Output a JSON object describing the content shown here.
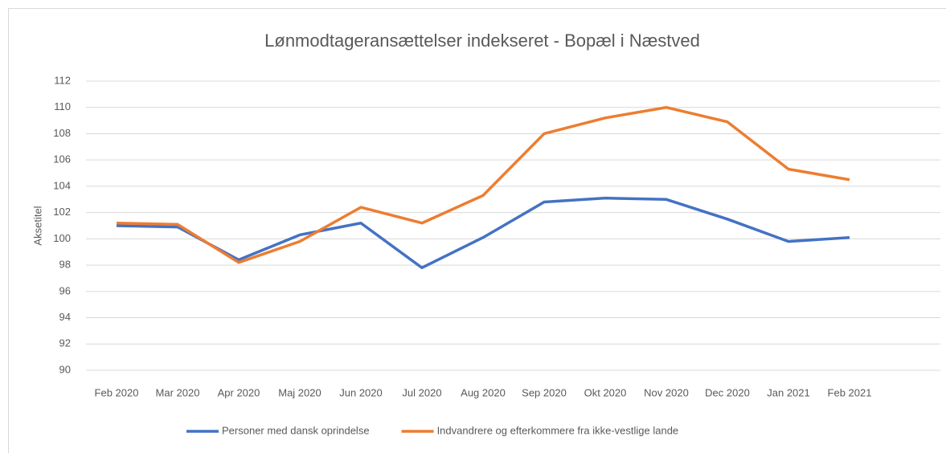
{
  "chart_data": {
    "type": "line",
    "title": "Lønmodtageransættelser indekseret - Bopæl i Næstved",
    "y_label": "Aksetitel",
    "categories": [
      "Feb 2020",
      "Mar 2020",
      "Apr 2020",
      "Maj 2020",
      "Jun 2020",
      "Jul 2020",
      "Aug 2020",
      "Sep 2020",
      "Okt 2020",
      "Nov 2020",
      "Dec 2020",
      "Jan 2021",
      "Feb 2021"
    ],
    "series": [
      {
        "name": "Personer med dansk oprindelse",
        "color": "#4472c4",
        "values": [
          101.0,
          100.9,
          98.4,
          100.3,
          101.2,
          97.8,
          100.1,
          102.8,
          103.1,
          103.0,
          101.5,
          99.8,
          100.1
        ]
      },
      {
        "name": "Indvandrere og efterkommere fra ikke-vestlige lande",
        "color": "#ed7d31",
        "values": [
          101.2,
          101.1,
          98.2,
          99.8,
          102.4,
          101.2,
          103.3,
          108.0,
          109.2,
          110.0,
          108.9,
          105.3,
          104.5
        ]
      }
    ],
    "ylim": [
      90,
      112
    ],
    "yticks": [
      90,
      92,
      94,
      96,
      98,
      100,
      102,
      104,
      106,
      108,
      110,
      112
    ],
    "grid": true,
    "legend": "bottom"
  }
}
